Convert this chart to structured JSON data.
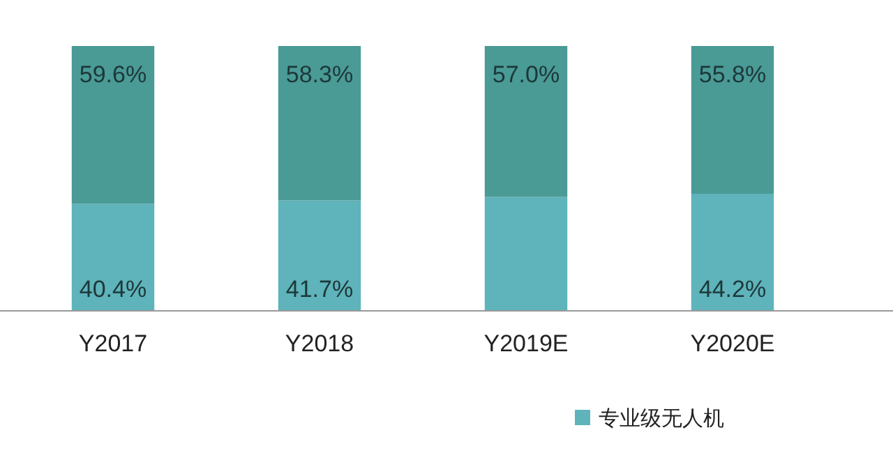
{
  "chart_data": {
    "type": "bar",
    "stacked": true,
    "categories": [
      "Y2017",
      "Y2018",
      "Y2019E",
      "Y2020E"
    ],
    "series": [
      {
        "name": "专业级无人机",
        "color": "#5fb3bb",
        "values": [
          40.4,
          41.7,
          43.0,
          44.2
        ],
        "value_labels": [
          "40.4%",
          "41.7%",
          null,
          "44.2%"
        ]
      },
      {
        "color": "#4a9a96",
        "values": [
          59.6,
          58.3,
          57.0,
          55.8
        ],
        "value_labels": [
          "59.6%",
          "58.3%",
          "57.0%",
          "55.8%"
        ]
      }
    ],
    "legend": "bottom right"
  }
}
